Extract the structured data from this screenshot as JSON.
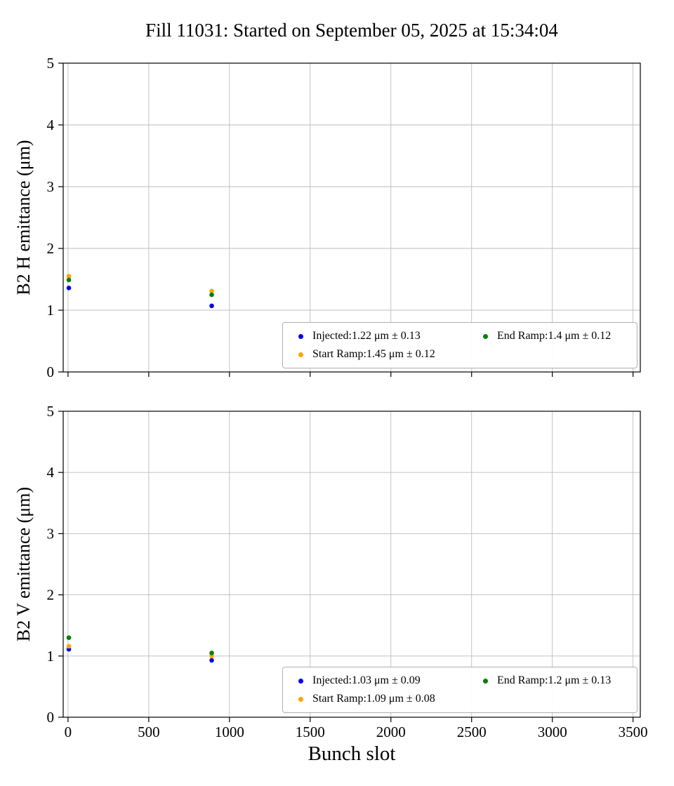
{
  "title": "Fill 11031: Started on September 05, 2025 at 15:34:04",
  "xlabel": "Bunch slot",
  "chart_data": [
    {
      "type": "scatter",
      "title": "",
      "ylabel": "B2 H emittance (μm)",
      "xlabel": "Bunch slot",
      "xlim": [
        -30,
        3545
      ],
      "ylim": [
        0,
        5
      ],
      "xticks": [
        0,
        500,
        1000,
        1500,
        2000,
        2500,
        3000,
        3500
      ],
      "yticks": [
        0,
        1,
        2,
        3,
        4,
        5
      ],
      "grid": true,
      "legend_position": "lower right",
      "series": [
        {
          "name": "Injected:1.22 μm ± 0.13",
          "color": "#0000ee",
          "points": [
            {
              "x": 5,
              "y": 1.36
            },
            {
              "x": 890,
              "y": 1.07
            }
          ]
        },
        {
          "name": "Start Ramp:1.45 μm ± 0.12",
          "color": "#ffa500",
          "points": [
            {
              "x": 5,
              "y": 1.55
            },
            {
              "x": 890,
              "y": 1.31
            }
          ]
        },
        {
          "name": "End Ramp:1.4 μm ± 0.12",
          "color": "#008000",
          "points": [
            {
              "x": 5,
              "y": 1.49
            },
            {
              "x": 890,
              "y": 1.25
            }
          ]
        }
      ]
    },
    {
      "type": "scatter",
      "title": "",
      "ylabel": "B2 V emittance (μm)",
      "xlabel": "Bunch slot",
      "xlim": [
        -30,
        3545
      ],
      "ylim": [
        0,
        5
      ],
      "xticks": [
        0,
        500,
        1000,
        1500,
        2000,
        2500,
        3000,
        3500
      ],
      "yticks": [
        0,
        1,
        2,
        3,
        4,
        5
      ],
      "grid": true,
      "legend_position": "lower right",
      "series": [
        {
          "name": "Injected:1.03 μm ± 0.09",
          "color": "#0000ee",
          "points": [
            {
              "x": 5,
              "y": 1.11
            },
            {
              "x": 890,
              "y": 0.93
            }
          ]
        },
        {
          "name": "Start Ramp:1.09 μm ± 0.08",
          "color": "#ffa500",
          "points": [
            {
              "x": 5,
              "y": 1.16
            },
            {
              "x": 890,
              "y": 1.0
            }
          ]
        },
        {
          "name": "End Ramp:1.2 μm ± 0.13",
          "color": "#008000",
          "points": [
            {
              "x": 5,
              "y": 1.3
            },
            {
              "x": 890,
              "y": 1.05
            }
          ]
        }
      ]
    }
  ]
}
